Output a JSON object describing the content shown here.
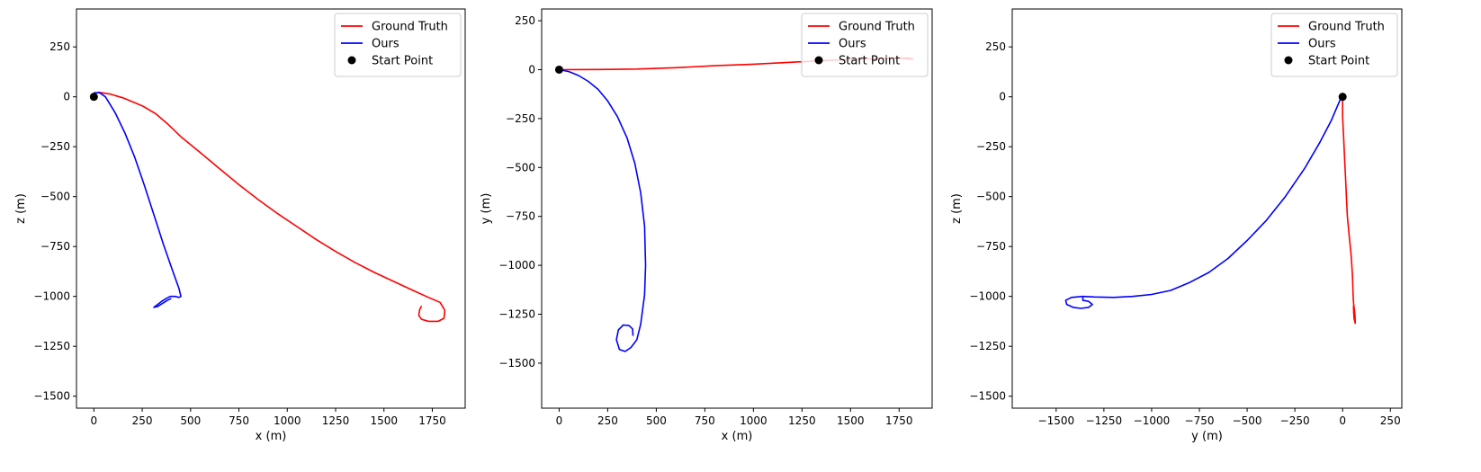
{
  "chart_data": [
    {
      "type": "line",
      "xlabel": "x (m)",
      "ylabel": "z (m)",
      "xlim": [
        -90,
        1920
      ],
      "ylim": [
        -1560,
        440
      ],
      "xticks": [
        0,
        250,
        500,
        750,
        1000,
        1250,
        1500,
        1750
      ],
      "yticks": [
        250,
        0,
        -250,
        -500,
        -750,
        -1000,
        -1250,
        -1500
      ],
      "legend_position": "top-right",
      "series": [
        {
          "name": "Ground Truth",
          "color": "#ff0000",
          "points": [
            [
              20,
              23
            ],
            [
              80,
              15
            ],
            [
              150,
              -5
            ],
            [
              250,
              -45
            ],
            [
              320,
              -85
            ],
            [
              380,
              -135
            ],
            [
              450,
              -200
            ],
            [
              550,
              -280
            ],
            [
              650,
              -360
            ],
            [
              750,
              -440
            ],
            [
              850,
              -515
            ],
            [
              950,
              -585
            ],
            [
              1050,
              -650
            ],
            [
              1150,
              -715
            ],
            [
              1250,
              -775
            ],
            [
              1350,
              -830
            ],
            [
              1450,
              -880
            ],
            [
              1550,
              -925
            ],
            [
              1650,
              -970
            ],
            [
              1730,
              -1005
            ],
            [
              1790,
              -1030
            ],
            [
              1815,
              -1070
            ],
            [
              1810,
              -1110
            ],
            [
              1780,
              -1125
            ],
            [
              1730,
              -1125
            ],
            [
              1695,
              -1115
            ],
            [
              1680,
              -1095
            ],
            [
              1685,
              -1065
            ],
            [
              1695,
              -1048
            ]
          ]
        },
        {
          "name": "Ours",
          "color": "#0000ff",
          "points": [
            [
              0,
              20
            ],
            [
              30,
              20
            ],
            [
              60,
              0
            ],
            [
              110,
              -80
            ],
            [
              160,
              -180
            ],
            [
              210,
              -300
            ],
            [
              260,
              -440
            ],
            [
              310,
              -590
            ],
            [
              360,
              -740
            ],
            [
              410,
              -880
            ],
            [
              440,
              -960
            ],
            [
              450,
              -1000
            ],
            [
              440,
              -1005
            ],
            [
              420,
              -1000
            ],
            [
              395,
              -1000
            ],
            [
              375,
              -1010
            ],
            [
              350,
              -1025
            ],
            [
              330,
              -1040
            ],
            [
              310,
              -1055
            ],
            [
              330,
              -1050
            ],
            [
              355,
              -1035
            ],
            [
              380,
              -1020
            ],
            [
              400,
              -1010
            ]
          ]
        },
        {
          "name": "Start Point",
          "color": "#000000",
          "marker": "circle",
          "points": [
            [
              0,
              0
            ]
          ]
        }
      ]
    },
    {
      "type": "line",
      "xlabel": "x (m)",
      "ylabel": "y (m)",
      "xlim": [
        -90,
        1920
      ],
      "ylim": [
        -1730,
        310
      ],
      "xticks": [
        0,
        250,
        500,
        750,
        1000,
        1250,
        1500,
        1750
      ],
      "yticks": [
        250,
        0,
        -250,
        -500,
        -750,
        -1000,
        -1250,
        -1500
      ],
      "legend_position": "top-right",
      "series": [
        {
          "name": "Ground Truth",
          "color": "#ff0000",
          "points": [
            [
              0,
              0
            ],
            [
              200,
              1
            ],
            [
              400,
              3
            ],
            [
              600,
              10
            ],
            [
              800,
              20
            ],
            [
              1000,
              28
            ],
            [
              1200,
              38
            ],
            [
              1400,
              48
            ],
            [
              1600,
              55
            ],
            [
              1750,
              60
            ],
            [
              1800,
              58
            ],
            [
              1820,
              54
            ],
            [
              1770,
              58
            ],
            [
              1700,
              60
            ],
            [
              1650,
              57
            ]
          ]
        },
        {
          "name": "Ours",
          "color": "#0000ff",
          "points": [
            [
              0,
              0
            ],
            [
              50,
              -10
            ],
            [
              100,
              -30
            ],
            [
              150,
              -60
            ],
            [
              200,
              -100
            ],
            [
              250,
              -160
            ],
            [
              300,
              -240
            ],
            [
              350,
              -350
            ],
            [
              390,
              -480
            ],
            [
              420,
              -630
            ],
            [
              440,
              -800
            ],
            [
              445,
              -1000
            ],
            [
              440,
              -1150
            ],
            [
              420,
              -1300
            ],
            [
              400,
              -1380
            ],
            [
              370,
              -1420
            ],
            [
              340,
              -1440
            ],
            [
              310,
              -1430
            ],
            [
              295,
              -1380
            ],
            [
              305,
              -1330
            ],
            [
              330,
              -1305
            ],
            [
              360,
              -1308
            ],
            [
              378,
              -1325
            ],
            [
              380,
              -1360
            ]
          ]
        },
        {
          "name": "Start Point",
          "color": "#000000",
          "marker": "circle",
          "points": [
            [
              0,
              0
            ]
          ]
        }
      ]
    },
    {
      "type": "line",
      "xlabel": "y (m)",
      "ylabel": "z (m)",
      "xlim": [
        -1730,
        310
      ],
      "ylim": [
        -1560,
        440
      ],
      "xticks": [
        -1500,
        -1250,
        -1000,
        -750,
        -500,
        -250,
        0,
        250
      ],
      "yticks": [
        250,
        0,
        -250,
        -500,
        -750,
        -1000,
        -1250,
        -1500
      ],
      "legend_position": "top-right",
      "series": [
        {
          "name": "Ground Truth",
          "color": "#ff0000",
          "points": [
            [
              0,
              5
            ],
            [
              0,
              -100
            ],
            [
              5,
              -200
            ],
            [
              10,
              -300
            ],
            [
              15,
              -400
            ],
            [
              20,
              -500
            ],
            [
              25,
              -600
            ],
            [
              35,
              -700
            ],
            [
              45,
              -800
            ],
            [
              52,
              -900
            ],
            [
              55,
              -1000
            ],
            [
              58,
              -1040
            ],
            [
              62,
              -1070
            ],
            [
              65,
              -1100
            ],
            [
              66,
              -1135
            ],
            [
              60,
              -1110
            ],
            [
              58,
              -1080
            ],
            [
              57,
              -1050
            ],
            [
              60,
              -1040
            ]
          ]
        },
        {
          "name": "Ours",
          "color": "#0000ff",
          "points": [
            [
              0,
              15
            ],
            [
              -20,
              -30
            ],
            [
              -60,
              -120
            ],
            [
              -120,
              -230
            ],
            [
              -200,
              -360
            ],
            [
              -300,
              -500
            ],
            [
              -400,
              -620
            ],
            [
              -500,
              -720
            ],
            [
              -600,
              -810
            ],
            [
              -700,
              -880
            ],
            [
              -800,
              -930
            ],
            [
              -900,
              -970
            ],
            [
              -1000,
              -990
            ],
            [
              -1100,
              -1000
            ],
            [
              -1200,
              -1005
            ],
            [
              -1300,
              -1003
            ],
            [
              -1360,
              -1000
            ],
            [
              -1420,
              -1005
            ],
            [
              -1450,
              -1020
            ],
            [
              -1445,
              -1040
            ],
            [
              -1410,
              -1055
            ],
            [
              -1370,
              -1060
            ],
            [
              -1330,
              -1055
            ],
            [
              -1310,
              -1040
            ],
            [
              -1330,
              -1025
            ],
            [
              -1360,
              -1020
            ],
            [
              -1360,
              -1005
            ]
          ]
        },
        {
          "name": "Start Point",
          "color": "#000000",
          "marker": "circle",
          "points": [
            [
              0,
              0
            ]
          ]
        }
      ]
    }
  ]
}
